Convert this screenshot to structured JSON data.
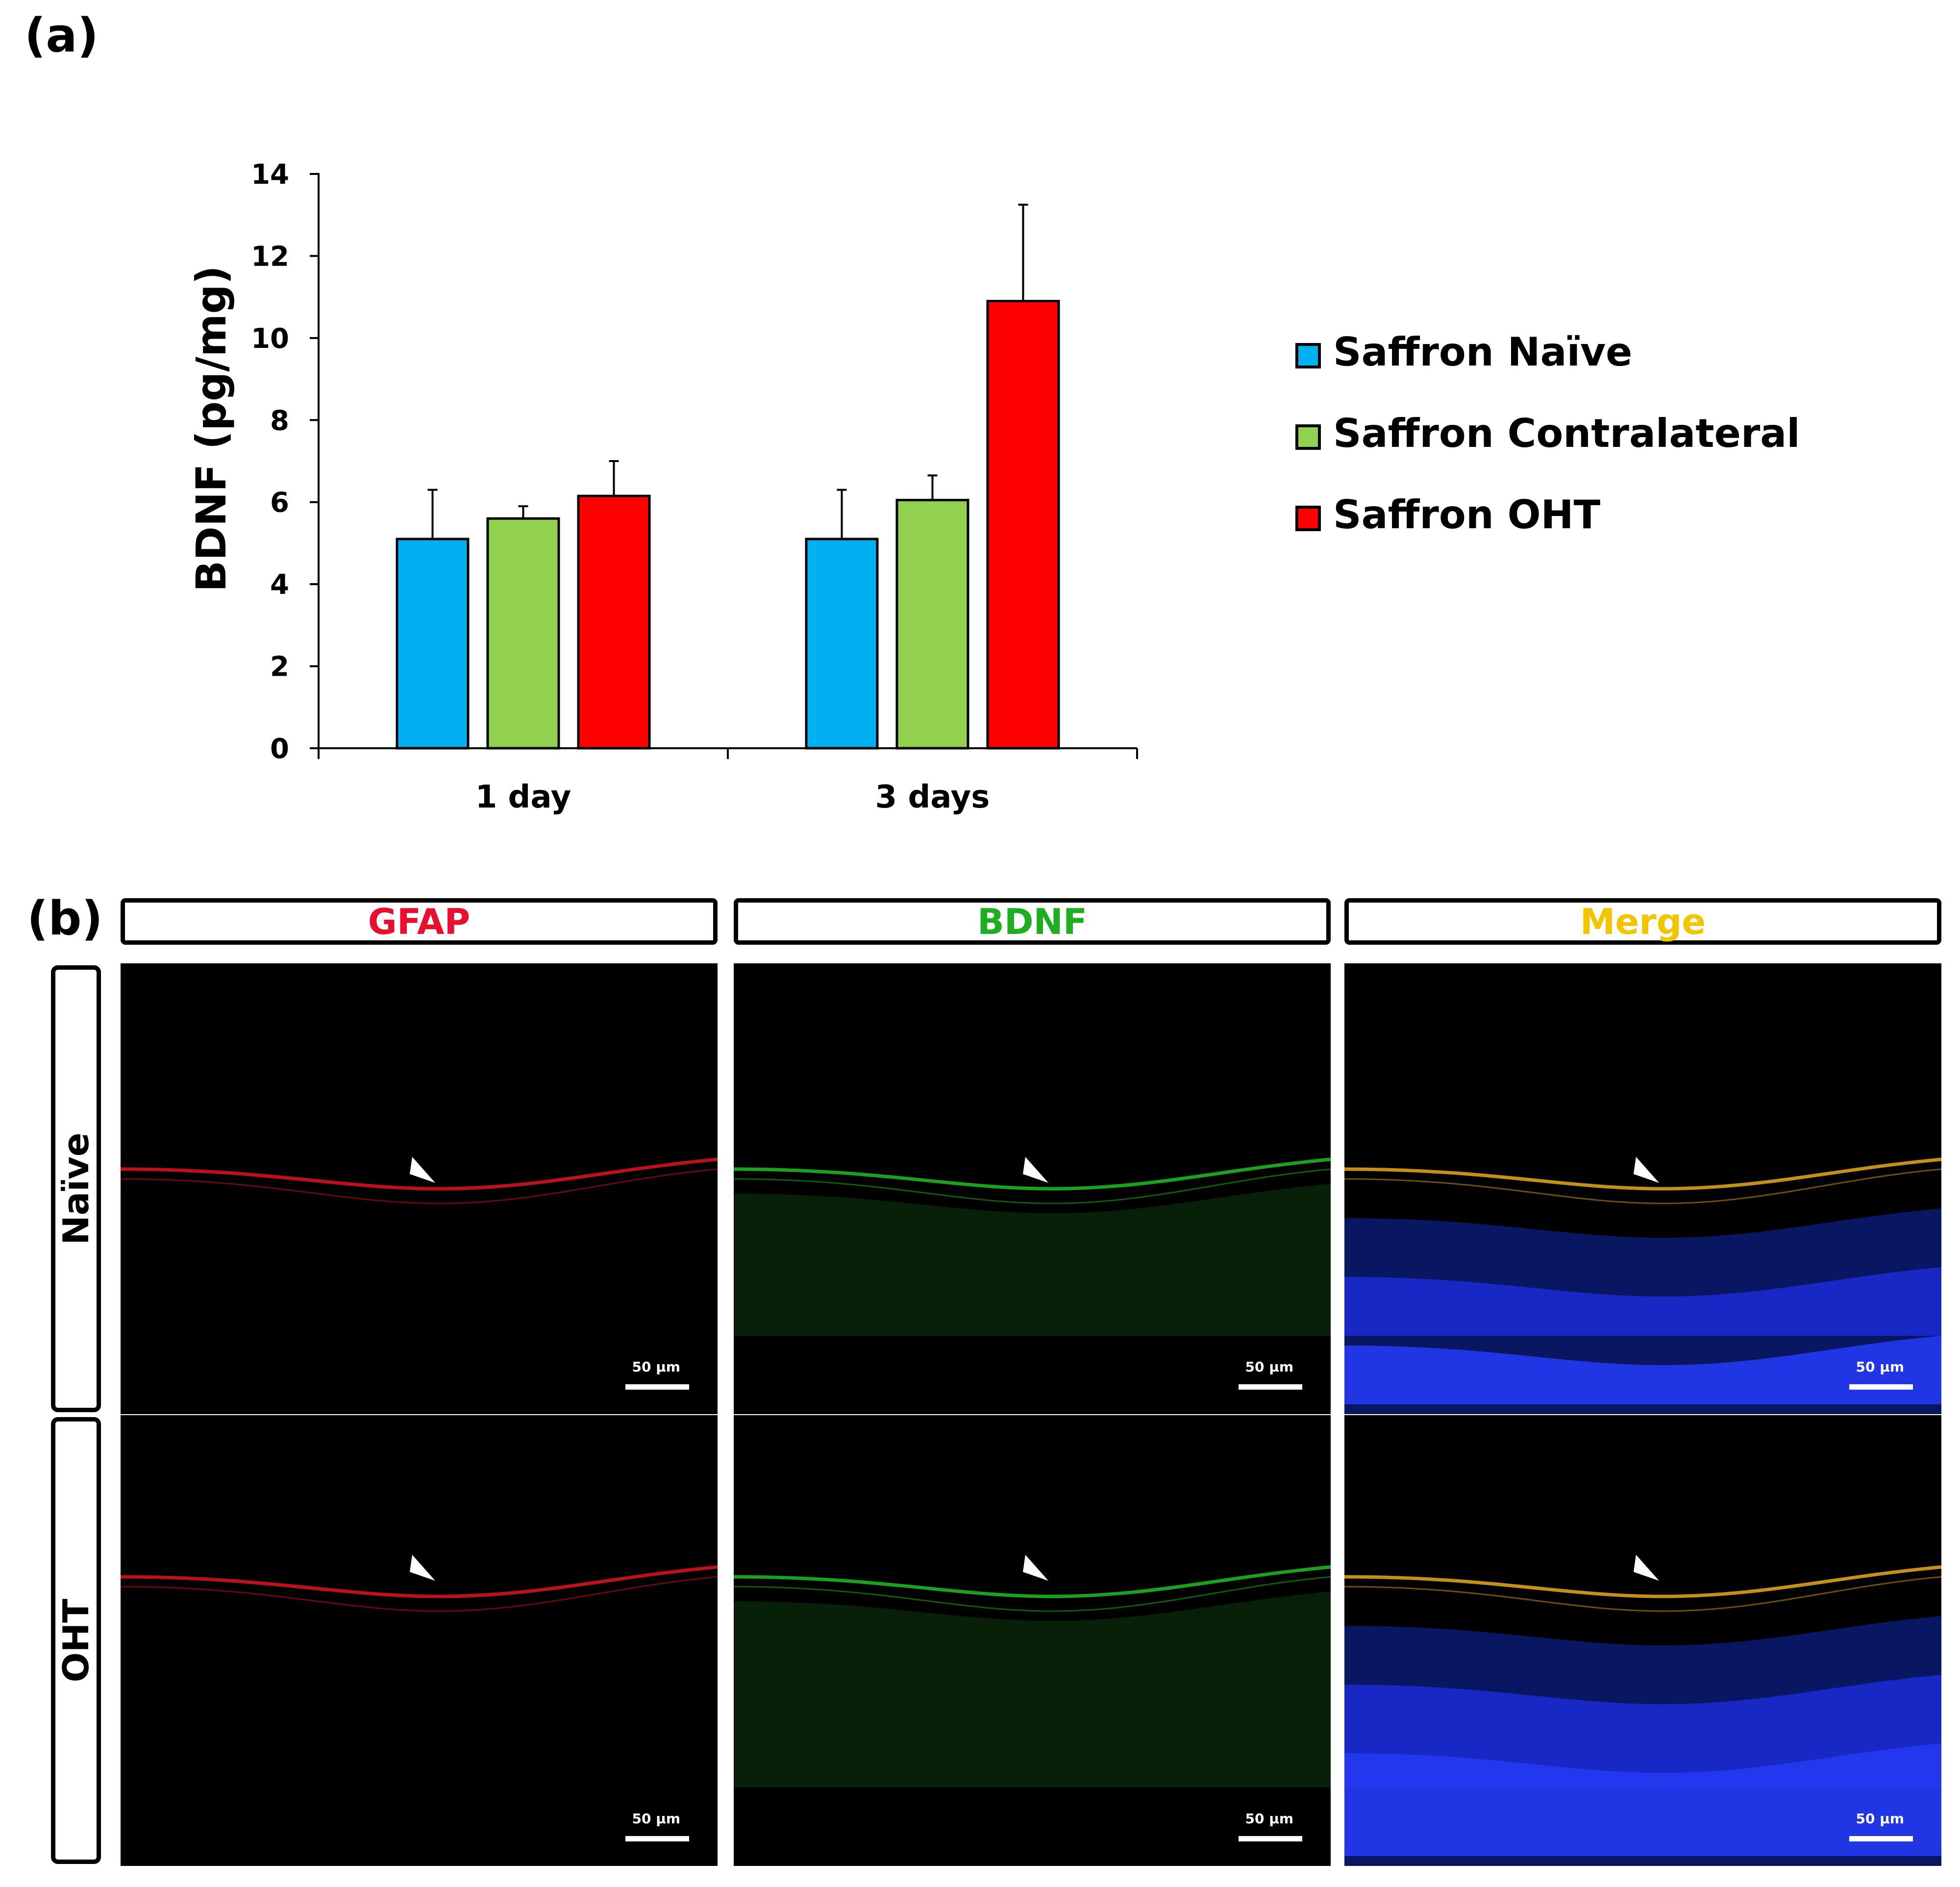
{
  "panel_a_label": "(a)",
  "panel_b_label": "(b)",
  "chart_data": {
    "type": "bar",
    "title": "",
    "xlabel": "",
    "ylabel": "BDNF (pg/mg)",
    "ylim": [
      0,
      14
    ],
    "yticks": [
      0,
      2,
      4,
      6,
      8,
      10,
      12,
      14
    ],
    "categories": [
      "1 day",
      "3 days"
    ],
    "series": [
      {
        "name": "Saffron Naïve",
        "color": "#00B0F0",
        "values": [
          5.1,
          5.1
        ],
        "errors": [
          1.2,
          1.2
        ]
      },
      {
        "name": "Saffron Contralateral",
        "color": "#92D050",
        "values": [
          5.6,
          6.05
        ],
        "errors": [
          0.3,
          0.6
        ]
      },
      {
        "name": "Saffron OHT",
        "color": "#FF0000",
        "values": [
          6.15,
          10.9
        ],
        "errors": [
          0.85,
          2.35
        ]
      }
    ],
    "legend_position": "right"
  },
  "micrograph_grid": {
    "columns": [
      {
        "label": "GFAP",
        "color": "#E8112D"
      },
      {
        "label": "BDNF",
        "color": "#1FAE1F"
      },
      {
        "label": "Merge",
        "color": "#F2C500"
      }
    ],
    "rows": [
      {
        "label": "Naïve"
      },
      {
        "label": "OHT"
      }
    ],
    "scale_bar_label": "50 µm"
  }
}
